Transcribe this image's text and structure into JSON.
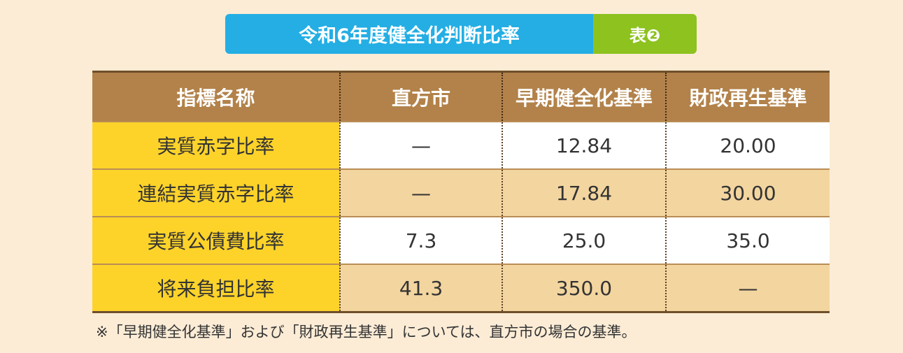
{
  "title": {
    "main": "令和6年度健全化判断比率",
    "tag": "表❷"
  },
  "colors": {
    "background": "#fcecd6",
    "title_main": "#24aee4",
    "title_tag": "#8dc21f",
    "header": "#b2824a",
    "row_label": "#fdd32a",
    "row_alt": "#f3d59f"
  },
  "table": {
    "headers": [
      "指標名称",
      "直方市",
      "早期健全化基準",
      "財政再生基準"
    ],
    "rows": [
      [
        "実質赤字比率",
        "—",
        "12.84",
        "20.00"
      ],
      [
        "連結実質赤字比率",
        "—",
        "17.84",
        "30.00"
      ],
      [
        "実質公債費比率",
        "7.3",
        "25.0",
        "35.0"
      ],
      [
        "将来負担比率",
        "41.3",
        "350.0",
        "—"
      ]
    ]
  },
  "footnote": "※「早期健全化基準」および「財政再生基準」については、直方市の場合の基準。"
}
